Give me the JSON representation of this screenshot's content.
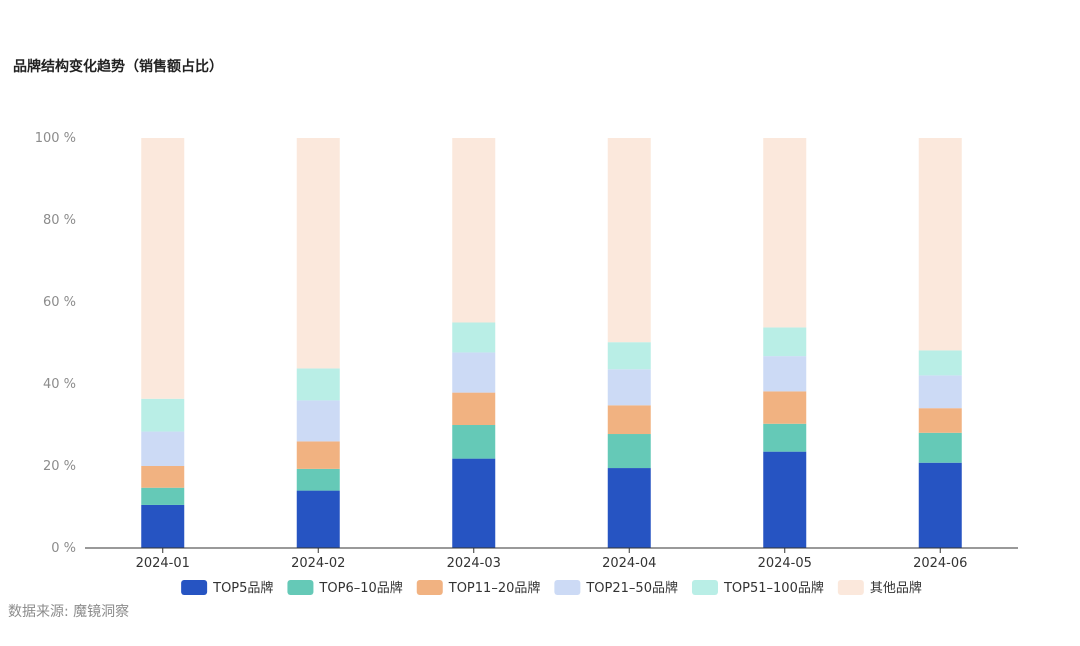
{
  "title": "品牌结构变化趋势（销售额占比）",
  "source": "数据来源: 魔镜洞察",
  "chart_data": {
    "type": "bar",
    "stacked": true,
    "categories": [
      "2024-01",
      "2024-02",
      "2024-03",
      "2024-04",
      "2024-05",
      "2024-06"
    ],
    "ylim": [
      0,
      100
    ],
    "yticks": [
      0,
      20,
      40,
      60,
      80,
      100
    ],
    "ytick_labels": [
      "0 %",
      "20 %",
      "40 %",
      "60 %",
      "80 %",
      "100 %"
    ],
    "grid": false,
    "legend_position": "bottom",
    "series": [
      {
        "name": "TOP5品牌",
        "color": "#2654c2",
        "values": [
          10.5,
          14.0,
          21.8,
          19.5,
          23.5,
          20.8
        ]
      },
      {
        "name": "TOP6–10品牌",
        "color": "#65c9b7",
        "values": [
          4.2,
          5.3,
          8.2,
          8.3,
          6.8,
          7.3
        ]
      },
      {
        "name": "TOP11–20品牌",
        "color": "#f1b281",
        "values": [
          5.3,
          6.7,
          7.9,
          7.0,
          7.9,
          6.0
        ]
      },
      {
        "name": "TOP21–50品牌",
        "color": "#ccdaf5",
        "values": [
          8.4,
          10.0,
          9.8,
          8.8,
          8.6,
          8.0
        ]
      },
      {
        "name": "TOP51–100品牌",
        "color": "#b9eee6",
        "values": [
          8.0,
          7.8,
          7.3,
          6.6,
          7.0,
          6.1
        ]
      },
      {
        "name": "其他品牌",
        "color": "#fbe8dc",
        "values": [
          63.6,
          56.2,
          45.0,
          49.8,
          46.2,
          51.8
        ]
      }
    ]
  }
}
